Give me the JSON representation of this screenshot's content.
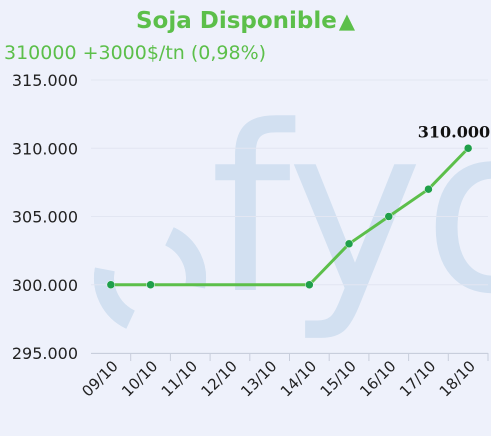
{
  "header": {
    "title": "Soja Disponible",
    "trend_glyph": "▲",
    "quote": "310000 +3000$/tn (0,98%)",
    "title_color": "#5cbf4a",
    "quote_color": "#5cbf4a"
  },
  "watermark": {
    "text": "fyo",
    "color": "#cfdff0"
  },
  "chart_data": {
    "type": "line",
    "categories": [
      "09/10",
      "10/10",
      "11/10",
      "12/10",
      "13/10",
      "14/10",
      "15/10",
      "16/10",
      "17/10",
      "18/10"
    ],
    "series": [
      {
        "values": [
          300000,
          300000,
          null,
          null,
          null,
          300000,
          303000,
          305000,
          307000,
          310000
        ],
        "color": "#5cbf4a"
      }
    ],
    "y_ticks": [
      295000,
      300000,
      305000,
      310000,
      315000
    ],
    "y_tick_labels": [
      "295.000",
      "300.000",
      "305.000",
      "310.000",
      "315.000"
    ],
    "ylim": [
      295000,
      315000
    ],
    "data_labels": [
      {
        "category": "18/10",
        "text": "310.000"
      }
    ],
    "grid": true,
    "title": "",
    "xlabel": "",
    "ylabel": ""
  }
}
